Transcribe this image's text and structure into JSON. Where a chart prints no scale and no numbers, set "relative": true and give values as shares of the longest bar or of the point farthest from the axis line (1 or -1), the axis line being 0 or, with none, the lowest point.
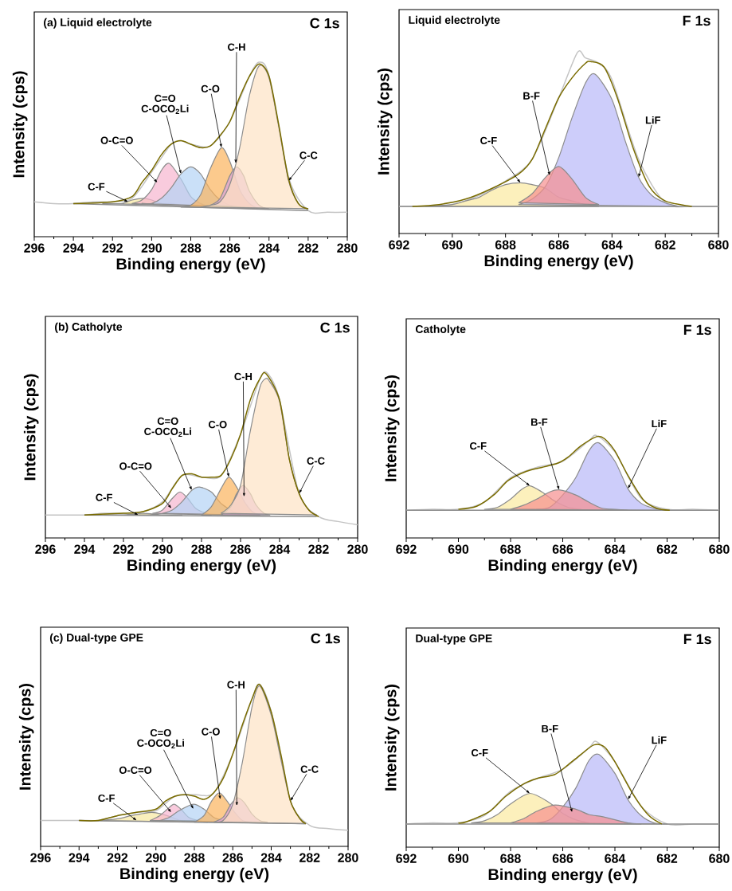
{
  "chart_data": [
    {
      "type": "area",
      "relative": true,
      "title": "(a) Liquid electrolyte",
      "subtitle": "C 1s",
      "xlabel": "Binding energy (eV)",
      "ylabel": "Intensity (cps)",
      "xlim": [
        296,
        280
      ],
      "tick_labels": "x",
      "xticks": [
        296,
        294,
        292,
        290,
        288,
        286,
        284,
        282,
        280
      ],
      "series": [
        {
          "type": "line",
          "color": "#c4c4c4",
          "x": [
            296,
            295,
            294,
            293,
            292,
            291,
            290,
            289,
            288.5,
            288,
            287,
            286,
            285,
            284.5,
            284,
            283,
            282,
            281,
            280
          ],
          "values": [
            0.2,
            0.19,
            0.19,
            0.2,
            0.2,
            0.22,
            0.37,
            0.53,
            0.55,
            0.53,
            0.52,
            0.66,
            0.92,
            1.0,
            0.92,
            0.34,
            0.15,
            0.14,
            0.14
          ]
        },
        {
          "color": "#f8e8a0",
          "x": [
            292.5,
            292,
            291.5,
            291,
            290.4,
            290,
            289.5,
            289,
            288.5
          ],
          "values": [
            0.19,
            0.19,
            0.19,
            0.21,
            0.22,
            0.21,
            0.19,
            0.19,
            0.18
          ]
        },
        {
          "color": "#f7b5cf",
          "x": [
            291,
            290.5,
            290,
            289.5,
            289.1,
            288.5,
            288,
            287.5,
            287
          ],
          "values": [
            0.19,
            0.21,
            0.27,
            0.38,
            0.42,
            0.33,
            0.23,
            0.19,
            0.17
          ]
        },
        {
          "color": "#b4d3f5",
          "x": [
            290.5,
            290,
            289.5,
            289,
            288.5,
            288,
            287.5,
            287,
            286.5,
            286,
            285.5
          ],
          "values": [
            0.19,
            0.19,
            0.22,
            0.28,
            0.36,
            0.4,
            0.36,
            0.27,
            0.21,
            0.18,
            0.17
          ]
        },
        {
          "color": "#fbb45c",
          "x": [
            288.5,
            288,
            287.5,
            287,
            286.43,
            286,
            285.5,
            285,
            284.5
          ],
          "values": [
            0.17,
            0.18,
            0.24,
            0.39,
            0.51,
            0.43,
            0.27,
            0.19,
            0.16
          ]
        },
        {
          "color": "#d9a3e0",
          "x": [
            287,
            286.5,
            286,
            285.65,
            285.3,
            285,
            284.5,
            284
          ],
          "values": [
            0.18,
            0.22,
            0.35,
            0.4,
            0.35,
            0.26,
            0.18,
            0.16
          ]
        },
        {
          "color": "#fde3c4",
          "x": [
            287.5,
            287,
            286.5,
            286,
            285.5,
            285,
            284.5,
            284,
            283.5,
            283,
            282.5,
            282
          ],
          "values": [
            0.17,
            0.18,
            0.2,
            0.3,
            0.51,
            0.81,
            0.98,
            0.91,
            0.63,
            0.32,
            0.19,
            0.16
          ]
        },
        {
          "type": "line",
          "color": "#8c8c8c",
          "x": [
            294,
            282
          ],
          "values": [
            0.19,
            0.15
          ]
        },
        {
          "type": "line",
          "color": "#7a6c00",
          "x": [
            294,
            292,
            291,
            290.5,
            290,
            289.5,
            289,
            288.5,
            288,
            287.5,
            287,
            286.5,
            286,
            285.5,
            285,
            284.5,
            284,
            283.5,
            283,
            282.5,
            282
          ],
          "values": [
            0.19,
            0.2,
            0.23,
            0.31,
            0.38,
            0.47,
            0.53,
            0.55,
            0.53,
            0.51,
            0.52,
            0.58,
            0.66,
            0.8,
            0.92,
            0.99,
            0.92,
            0.64,
            0.33,
            0.19,
            0.16
          ]
        }
      ],
      "annotations": [
        {
          "text": "C-F",
          "x": 291.2,
          "y": 0.2
        },
        {
          "text": "O-C=O",
          "x": 289.7,
          "y": 0.31
        },
        "C=O",
        {
          "text": "C-OCO$_{2}$Li",
          "x": 288.5,
          "y": 0.36
        },
        {
          "text": "C-O",
          "x": 286.43,
          "y": 0.51
        },
        {
          "text": "C-H",
          "x": 285.7,
          "y": 0.42
        },
        {
          "text": "C-C",
          "x": 283,
          "y": 0.32
        }
      ]
    },
    {
      "type": "area",
      "relative": true,
      "title": "Liquid electrolyte",
      "subtitle": "F 1s",
      "xlabel": "Binding energy (eV)",
      "ylabel": "Intensity (cps)",
      "xlim": [
        692,
        680
      ],
      "tick_labels": "x",
      "xticks": [
        692,
        690,
        688,
        686,
        684,
        682,
        680
      ],
      "series": [
        {
          "type": "line",
          "color": "#c4c4c4",
          "x": [
            692,
            691,
            690,
            689,
            688,
            687,
            686,
            685.3,
            685,
            684.5,
            684,
            683,
            682,
            681,
            680
          ],
          "values": [
            0.15,
            0.15,
            0.16,
            0.21,
            0.29,
            0.41,
            0.75,
            1.0,
            0.97,
            0.94,
            0.85,
            0.41,
            0.17,
            0.15,
            0.15
          ]
        },
        {
          "color": "#fbe9a0",
          "x": [
            691,
            690,
            689.5,
            689,
            688.5,
            688,
            687.44,
            687,
            686.5,
            686,
            685.5,
            685,
            684.5
          ],
          "values": [
            0.15,
            0.16,
            0.18,
            0.2,
            0.24,
            0.27,
            0.28,
            0.27,
            0.25,
            0.2,
            0.18,
            0.16,
            0.15
          ]
        },
        {
          "color": "#b8b8f8",
          "x": [
            687.5,
            687,
            686.5,
            686,
            685.5,
            685,
            684.64,
            684,
            683.5,
            683,
            682.5,
            682,
            681.5
          ],
          "values": [
            0.16,
            0.19,
            0.26,
            0.42,
            0.64,
            0.83,
            0.88,
            0.74,
            0.51,
            0.31,
            0.21,
            0.17,
            0.15
          ]
        },
        {
          "color": "#f78f8f",
          "x": [
            687.5,
            687,
            686.5,
            686,
            685.5,
            685,
            684.5
          ],
          "values": [
            0.17,
            0.22,
            0.31,
            0.37,
            0.3,
            0.2,
            0.16
          ]
        },
        {
          "type": "line",
          "color": "#8c8c8c",
          "x": [
            692,
            680
          ],
          "values": [
            0.15,
            0.15
          ]
        },
        {
          "type": "line",
          "color": "#7a6c00",
          "x": [
            691.5,
            690.5,
            689.5,
            688.5,
            687.5,
            687,
            686.5,
            686,
            685.5,
            685,
            684.8,
            684.3,
            683.8,
            683.2,
            682.6,
            682,
            681
          ],
          "values": [
            0.15,
            0.16,
            0.19,
            0.25,
            0.33,
            0.41,
            0.58,
            0.75,
            0.86,
            0.94,
            0.95,
            0.92,
            0.75,
            0.47,
            0.26,
            0.18,
            0.15
          ]
        }
      ],
      "annotations": [
        {
          "text": "C-F",
          "x": 687.44,
          "y": 0.28
        },
        {
          "text": "B-F",
          "x": 686.34,
          "y": 0.32
        },
        {
          "text": "LiF",
          "x": 683,
          "y": 0.31
        }
      ]
    },
    {
      "type": "area",
      "relative": true,
      "title": "(b) Catholyte",
      "subtitle": "C 1s",
      "xlabel": "Binding energy (eV)",
      "ylabel": "Intensity (cps)",
      "xlim": [
        296,
        280
      ],
      "tick_labels": "x",
      "xticks": [
        296,
        294,
        292,
        290,
        288,
        286,
        284,
        282,
        280
      ],
      "series": [
        {
          "type": "line",
          "color": "#c4c4c4",
          "x": [
            296,
            295,
            294,
            293,
            292,
            291,
            290,
            289,
            288,
            287,
            286,
            285,
            284.6,
            284,
            283,
            282,
            281,
            280
          ],
          "values": [
            0.14,
            0.14,
            0.14,
            0.15,
            0.15,
            0.16,
            0.22,
            0.38,
            0.37,
            0.38,
            0.63,
            0.97,
            1.0,
            0.84,
            0.27,
            0.13,
            0.1,
            0.08
          ]
        },
        {
          "color": "#f8e8a0",
          "x": [
            293,
            292,
            291,
            290,
            289
          ],
          "values": [
            0.14,
            0.14,
            0.15,
            0.14,
            0.14
          ]
        },
        {
          "color": "#f7b5cf",
          "x": [
            290.5,
            290,
            289.5,
            289.1,
            288.7,
            288.3,
            287.8,
            287.5
          ],
          "values": [
            0.15,
            0.17,
            0.24,
            0.28,
            0.24,
            0.18,
            0.15,
            0.14
          ]
        },
        {
          "color": "#b4d3f5",
          "x": [
            290,
            289.5,
            289,
            288.5,
            288.1,
            287.5,
            287,
            286.5,
            286
          ],
          "values": [
            0.15,
            0.17,
            0.22,
            0.29,
            0.31,
            0.28,
            0.21,
            0.17,
            0.14
          ]
        },
        {
          "color": "#fbb45c",
          "x": [
            288,
            287.5,
            287,
            286.6,
            286.2,
            285.8,
            285.4,
            285
          ],
          "values": [
            0.14,
            0.19,
            0.3,
            0.37,
            0.31,
            0.22,
            0.16,
            0.14
          ]
        },
        {
          "color": "#d9a3e0",
          "x": [
            287,
            286.5,
            286.2,
            285.86,
            285.5,
            285.2,
            284.8,
            284.5
          ],
          "values": [
            0.14,
            0.19,
            0.27,
            0.32,
            0.27,
            0.2,
            0.15,
            0.14
          ]
        },
        {
          "color": "#fde3c4",
          "x": [
            287,
            286.5,
            286,
            285.5,
            285,
            284.7,
            284.5,
            284,
            283.5,
            283,
            282.5,
            282.1
          ],
          "values": [
            0.15,
            0.2,
            0.32,
            0.65,
            0.92,
            0.97,
            0.95,
            0.83,
            0.48,
            0.27,
            0.17,
            0.14
          ]
        },
        {
          "type": "line",
          "color": "#8c8c8c",
          "x": [
            294,
            282.1
          ],
          "values": [
            0.14,
            0.13
          ]
        },
        {
          "type": "line",
          "color": "#7a6c00",
          "x": [
            294,
            292,
            291,
            290,
            289.5,
            289,
            288.5,
            288,
            287.5,
            287,
            286.5,
            286,
            285.5,
            285,
            284.7,
            284,
            283.5,
            283,
            282.5,
            282
          ],
          "values": [
            0.14,
            0.15,
            0.16,
            0.21,
            0.3,
            0.38,
            0.39,
            0.37,
            0.37,
            0.38,
            0.48,
            0.63,
            0.84,
            0.97,
            1.0,
            0.84,
            0.48,
            0.27,
            0.17,
            0.13
          ]
        }
      ],
      "annotations": [
        {
          "text": "C-F",
          "x": 291.24,
          "y": 0.14
        },
        {
          "text": "O-C=O",
          "x": 289.54,
          "y": 0.18
        },
        "C=O",
        {
          "text": "C-OCO$_{2}$Li",
          "x": 288.5,
          "y": 0.29
        },
        {
          "text": "C-O",
          "x": 286.6,
          "y": 0.37
        },
        {
          "text": "C-H",
          "x": 285.82,
          "y": 0.25
        },
        {
          "text": "C-C",
          "x": 283,
          "y": 0.27
        }
      ]
    },
    {
      "type": "area",
      "relative": true,
      "title": "Catholyte",
      "subtitle": "F 1s",
      "xlabel": "Binding energy (eV)",
      "ylabel": "Intensity (cps)",
      "xlim": [
        692,
        680
      ],
      "tick_labels": "x",
      "xticks": [
        692,
        690,
        688,
        686,
        684,
        682,
        680
      ],
      "series": [
        {
          "type": "line",
          "color": "#c4c4c4",
          "x": [
            692,
            691,
            690,
            689,
            688,
            687,
            686,
            685,
            684.7,
            684,
            683,
            682,
            681,
            680
          ],
          "values": [
            0.27,
            0.28,
            0.28,
            0.35,
            0.59,
            0.69,
            0.75,
            0.95,
            1.0,
            0.84,
            0.39,
            0.28,
            0.28,
            0.27
          ]
        },
        {
          "color": "#fbe9a0",
          "x": [
            689,
            688.5,
            688,
            687.6,
            687.26,
            686.8,
            686.3,
            685.8,
            685.3
          ],
          "values": [
            0.28,
            0.3,
            0.38,
            0.47,
            0.51,
            0.45,
            0.36,
            0.3,
            0.28
          ]
        },
        {
          "color": "#b8b8f8",
          "x": [
            687,
            686.5,
            686,
            685.5,
            685,
            684.62,
            684,
            683.5,
            683,
            682.5,
            682
          ],
          "values": [
            0.28,
            0.3,
            0.42,
            0.59,
            0.85,
            0.93,
            0.75,
            0.48,
            0.34,
            0.29,
            0.27
          ]
        },
        {
          "color": "#f78f8f",
          "x": [
            688,
            687.5,
            687,
            686.5,
            686.14,
            685.5,
            685,
            684.5,
            684,
            683.5
          ],
          "values": [
            0.28,
            0.32,
            0.38,
            0.45,
            0.47,
            0.42,
            0.35,
            0.29,
            0.28,
            0.27
          ]
        },
        {
          "type": "line",
          "color": "#8c8c8c",
          "x": [
            692,
            680
          ],
          "values": [
            0.27,
            0.27
          ]
        },
        {
          "type": "line",
          "color": "#7a6c00",
          "x": [
            690,
            689.3,
            688.6,
            688.1,
            687.4,
            686.8,
            686.2,
            685.8,
            685.3,
            684.7,
            684.4,
            684,
            683.5,
            682.9,
            682.4,
            681.9
          ],
          "values": [
            0.28,
            0.31,
            0.43,
            0.56,
            0.65,
            0.69,
            0.73,
            0.79,
            0.9,
            0.99,
            0.97,
            0.85,
            0.61,
            0.37,
            0.29,
            0.27
          ]
        }
      ],
      "annotations": [
        {
          "text": "C-F",
          "x": 687.26,
          "y": 0.51
        },
        {
          "text": "B-F",
          "x": 686.14,
          "y": 0.47
        },
        {
          "text": "LiF",
          "x": 683.5,
          "y": 0.48
        }
      ]
    },
    {
      "type": "area",
      "relative": true,
      "title": "(c) Dual-type GPE",
      "subtitle": "C 1s",
      "xlabel": "Binding energy (eV)",
      "ylabel": "Intensity (cps)",
      "xlim": [
        296,
        280
      ],
      "tick_labels": "x",
      "xticks": [
        296,
        294,
        292,
        290,
        288,
        286,
        284,
        282,
        280
      ],
      "series": [
        {
          "type": "line",
          "color": "#c4c4c4",
          "x": [
            296,
            295,
            294,
            293,
            292,
            291,
            290,
            289,
            288,
            287,
            286,
            285,
            284.6,
            284,
            283,
            282,
            281,
            280
          ],
          "values": [
            0.16,
            0.16,
            0.16,
            0.16,
            0.19,
            0.21,
            0.22,
            0.31,
            0.32,
            0.33,
            0.57,
            0.91,
            1.0,
            0.83,
            0.28,
            0.13,
            0.11,
            0.1
          ]
        },
        {
          "color": "#f8e8a0",
          "x": [
            294,
            293,
            292,
            291.3,
            290.8,
            290.2,
            289.7,
            289.2,
            288.7,
            288,
            287.3
          ],
          "values": [
            0.16,
            0.16,
            0.17,
            0.19,
            0.2,
            0.21,
            0.2,
            0.18,
            0.16,
            0.16,
            0.15
          ]
        },
        {
          "color": "#f7b5cf",
          "x": [
            290.3,
            289.8,
            289.4,
            289.06,
            288.7,
            288.3,
            287.8
          ],
          "values": [
            0.16,
            0.19,
            0.23,
            0.26,
            0.23,
            0.18,
            0.16
          ]
        },
        {
          "color": "#b4d3f5",
          "x": [
            289.8,
            289.3,
            288.8,
            288.05,
            287.5,
            287,
            286.5,
            286
          ],
          "values": [
            0.16,
            0.18,
            0.22,
            0.26,
            0.23,
            0.18,
            0.16,
            0.15
          ]
        },
        {
          "color": "#fbb45c",
          "x": [
            288,
            287.5,
            287.1,
            286.7,
            286.3,
            285.9,
            285.5,
            285
          ],
          "values": [
            0.15,
            0.19,
            0.28,
            0.33,
            0.28,
            0.21,
            0.16,
            0.15
          ]
        },
        {
          "color": "#d9a3e0",
          "x": [
            287,
            286.5,
            286.1,
            285.75,
            285.4,
            285,
            284.6,
            284.2
          ],
          "values": [
            0.15,
            0.18,
            0.26,
            0.3,
            0.27,
            0.2,
            0.16,
            0.15
          ]
        },
        {
          "color": "#fde3c4",
          "x": [
            287,
            286.5,
            286,
            285.5,
            285,
            284.6,
            284,
            283.5,
            283,
            282.5,
            282.2
          ],
          "values": [
            0.15,
            0.16,
            0.26,
            0.52,
            0.86,
            0.99,
            0.81,
            0.54,
            0.28,
            0.17,
            0.14
          ]
        },
        {
          "type": "line",
          "color": "#8c8c8c",
          "x": [
            294,
            282.2
          ],
          "values": [
            0.16,
            0.14
          ]
        },
        {
          "type": "line",
          "color": "#7a6c00",
          "x": [
            294,
            293,
            292,
            291,
            290,
            289.5,
            289,
            288.5,
            288,
            287.5,
            287,
            286.5,
            286,
            285.5,
            285,
            284.6,
            284,
            283.5,
            283,
            282.5,
            282.2
          ],
          "values": [
            0.16,
            0.16,
            0.19,
            0.21,
            0.23,
            0.28,
            0.31,
            0.32,
            0.31,
            0.29,
            0.33,
            0.42,
            0.57,
            0.75,
            0.91,
            1.0,
            0.83,
            0.57,
            0.28,
            0.17,
            0.14
          ]
        }
      ],
      "annotations": [
        {
          "text": "C-F",
          "x": 291,
          "y": 0.16
        },
        {
          "text": "O-C=O",
          "x": 289.2,
          "y": 0.21
        },
        "C=O",
        {
          "text": "C-OCO$_{2}$Li",
          "x": 288.05,
          "y": 0.23
        },
        {
          "text": "C-O",
          "x": 286.65,
          "y": 0.29
        },
        {
          "text": "C-H",
          "x": 285.79,
          "y": 0.25
        },
        {
          "text": "C-C",
          "x": 283,
          "y": 0.28
        }
      ]
    },
    {
      "type": "area",
      "relative": true,
      "title": "Dual-type GPE",
      "subtitle": "F 1s",
      "xlabel": "Binding energy (eV)",
      "ylabel": "Intensity (cps)",
      "xlim": [
        692,
        680
      ],
      "tick_labels": "x",
      "xticks": [
        692,
        690,
        688,
        686,
        684,
        682,
        680
      ],
      "series": [
        {
          "type": "line",
          "color": "#c4c4c4",
          "x": [
            692,
            691,
            690,
            689,
            688,
            687,
            686,
            685,
            684.7,
            684,
            683,
            682,
            681,
            680
          ],
          "values": [
            0.22,
            0.23,
            0.23,
            0.3,
            0.53,
            0.65,
            0.74,
            0.94,
            1.0,
            0.81,
            0.39,
            0.22,
            0.22,
            0.22
          ]
        },
        {
          "color": "#fbe9a0",
          "x": [
            689.5,
            689,
            688.5,
            688,
            687.26,
            686.5,
            686,
            685.5,
            685
          ],
          "values": [
            0.23,
            0.25,
            0.31,
            0.41,
            0.51,
            0.42,
            0.32,
            0.26,
            0.23
          ]
        },
        {
          "color": "#b8b8f8",
          "x": [
            687,
            686.5,
            686,
            685.5,
            685,
            684.62,
            684,
            683.5,
            683,
            682.5,
            682
          ],
          "values": [
            0.23,
            0.26,
            0.38,
            0.56,
            0.82,
            0.88,
            0.7,
            0.45,
            0.3,
            0.23,
            0.22
          ]
        },
        {
          "color": "#f78f8f",
          "x": [
            688,
            687.5,
            687,
            686.3,
            685.5,
            685,
            684.5,
            684,
            683.5,
            683
          ],
          "values": [
            0.23,
            0.27,
            0.34,
            0.4,
            0.36,
            0.31,
            0.29,
            0.26,
            0.23,
            0.22
          ]
        },
        {
          "type": "line",
          "color": "#8c8c8c",
          "x": [
            692,
            680
          ],
          "values": [
            0.22,
            0.22
          ]
        },
        {
          "type": "line",
          "color": "#7a6c00",
          "x": [
            690,
            689.7,
            688.8,
            688.2,
            687.5,
            687,
            686.3,
            685.8,
            685.3,
            684.8,
            684.4,
            684,
            683.3,
            682.7,
            682.2
          ],
          "values": [
            0.23,
            0.24,
            0.34,
            0.48,
            0.6,
            0.65,
            0.69,
            0.78,
            0.88,
            0.97,
            0.95,
            0.81,
            0.5,
            0.3,
            0.22
          ]
        }
      ],
      "annotations": [
        {
          "text": "C-F",
          "x": 687.26,
          "y": 0.51
        },
        {
          "text": "B-F",
          "x": 685.64,
          "y": 0.33
        },
        {
          "text": "LiF",
          "x": 683.5,
          "y": 0.45
        }
      ]
    }
  ]
}
